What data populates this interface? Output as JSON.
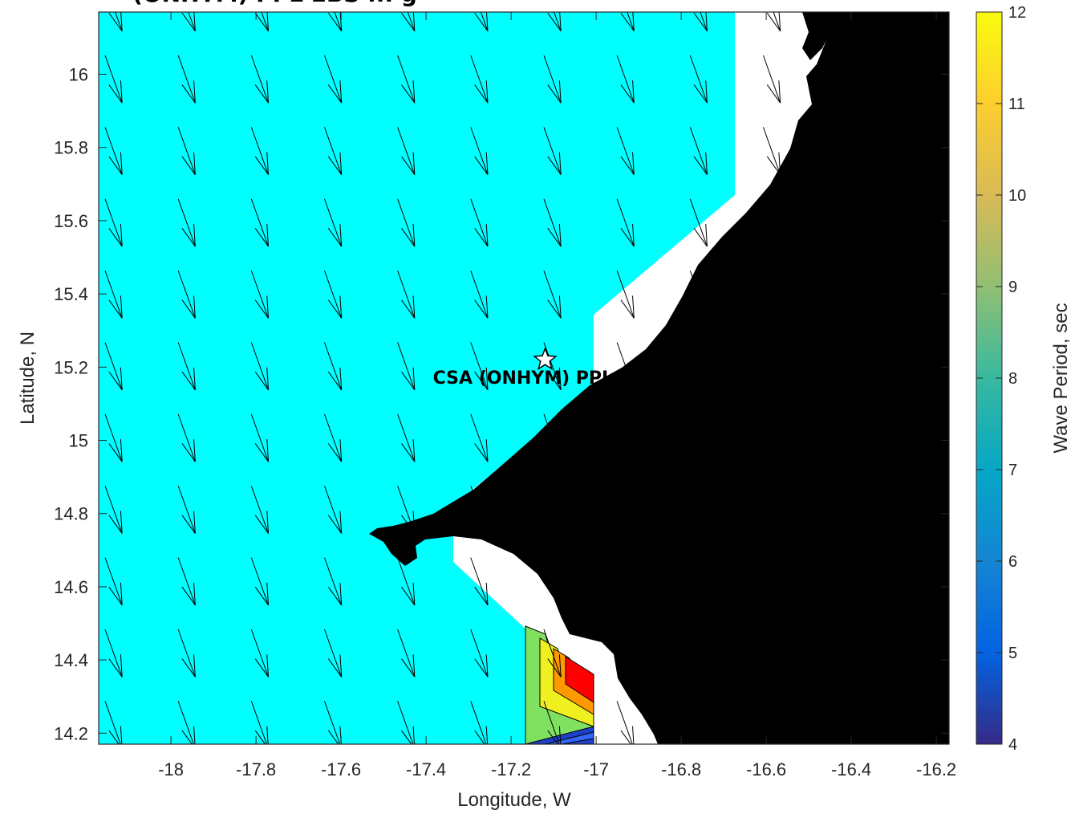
{
  "chart_data": {
    "type": "map",
    "title": "(ONHYM) PPL EBS ... g",
    "xlabel": "Longitude, W",
    "ylabel": "Latitude, N",
    "xlim": [
      -18.17,
      -16.17
    ],
    "ylim": [
      14.17,
      16.17
    ],
    "x_ticks": [
      -18,
      -17.8,
      -17.6,
      -17.4,
      -17.2,
      -17,
      -16.8,
      -16.6,
      -16.4,
      -16.2
    ],
    "y_ticks": [
      14.2,
      14.4,
      14.6,
      14.8,
      15,
      15.2,
      15.4,
      15.6,
      15.8,
      16
    ],
    "colorbar": {
      "label": "Wave Period, sec",
      "range": [
        4,
        12
      ],
      "ticks": [
        4,
        5,
        6,
        7,
        8,
        9,
        10,
        11,
        12
      ],
      "colormap": "parula"
    },
    "field_fill_color": "#00ffff",
    "field_value_sec": 7.5,
    "land_color": "#000000",
    "arrows": {
      "description": "wave direction vectors pointing south-southeast",
      "dx": 0.04,
      "dy": -0.13,
      "grid_lon_start": -18.17,
      "grid_lon_step": 0.172,
      "grid_lat_start": 14.17,
      "grid_lat_step": 0.196
    },
    "station": {
      "name": "CSA (ONHYM) PPL EBS",
      "lon": -17.12,
      "lat": 15.22,
      "marker": "star"
    },
    "contour_patch": {
      "lon_range": [
        -17.15,
        -17.0
      ],
      "lat_range": [
        14.28,
        14.5
      ],
      "colors": [
        "#80e060",
        "#f0f020",
        "#ff9900",
        "#ff0000"
      ]
    }
  }
}
